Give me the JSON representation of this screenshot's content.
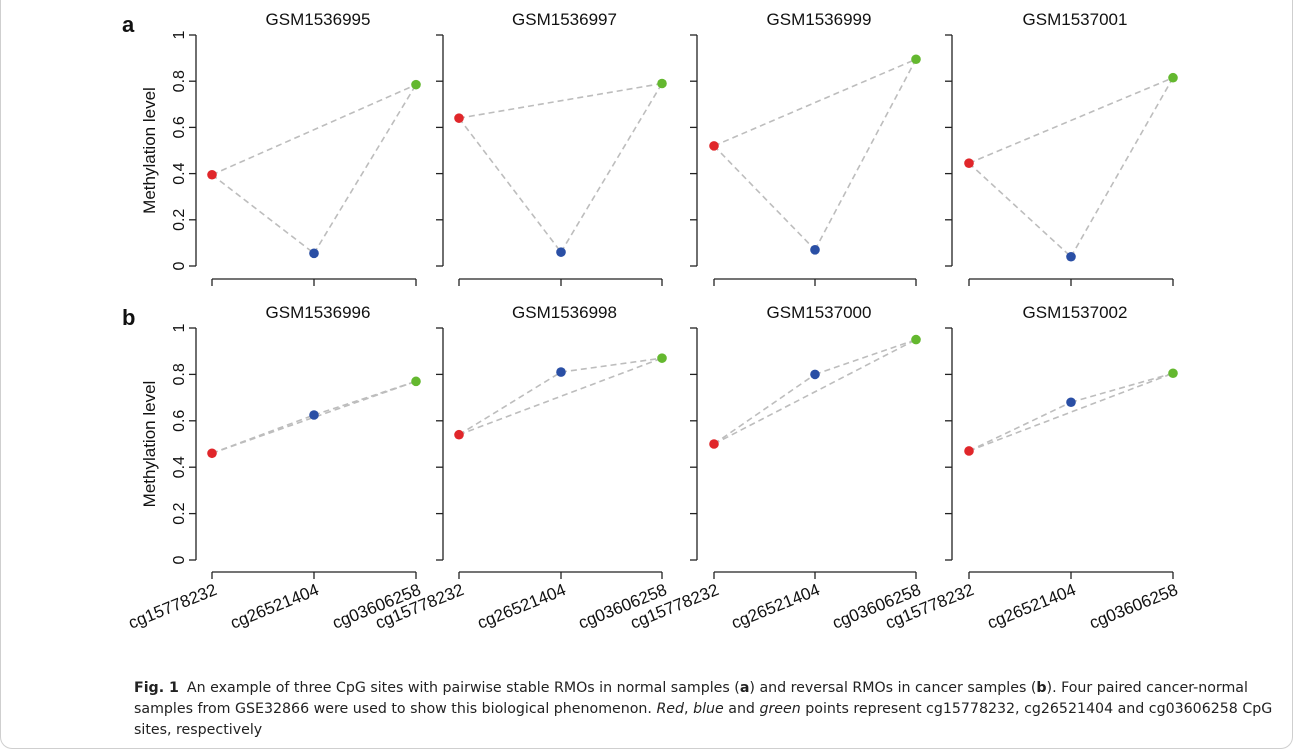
{
  "panels_rows": [
    {
      "label": "a",
      "panels": [
        "GSM1536995",
        "GSM1536997",
        "GSM1536999",
        "GSM1537001"
      ]
    },
    {
      "label": "b",
      "panels": [
        "GSM1536996",
        "GSM1536998",
        "GSM1537000",
        "GSM1537002"
      ]
    }
  ],
  "ylabel": "Methylation level",
  "categories": [
    "cg15778232",
    "cg26521404",
    "cg03606258"
  ],
  "colors": [
    "#e0262a",
    "#2a4fa5",
    "#64b82f"
  ],
  "y_ticks": [
    "0",
    "0.2",
    "0.4",
    "0.6",
    "0.8",
    "1"
  ],
  "chart_data": [
    {
      "type": "scatter",
      "title": "GSM1536995",
      "panel": "a",
      "ylabel": "Methylation level",
      "ylim": [
        0,
        1
      ],
      "categories": [
        "cg15778232",
        "cg26521404",
        "cg03606258"
      ],
      "values": [
        0.395,
        0.055,
        0.785
      ]
    },
    {
      "type": "scatter",
      "title": "GSM1536997",
      "panel": "a",
      "ylim": [
        0,
        1
      ],
      "categories": [
        "cg15778232",
        "cg26521404",
        "cg03606258"
      ],
      "values": [
        0.64,
        0.06,
        0.79
      ]
    },
    {
      "type": "scatter",
      "title": "GSM1536999",
      "panel": "a",
      "ylim": [
        0,
        1
      ],
      "categories": [
        "cg15778232",
        "cg26521404",
        "cg03606258"
      ],
      "values": [
        0.52,
        0.07,
        0.895
      ]
    },
    {
      "type": "scatter",
      "title": "GSM1537001",
      "panel": "a",
      "ylim": [
        0,
        1
      ],
      "categories": [
        "cg15778232",
        "cg26521404",
        "cg03606258"
      ],
      "values": [
        0.445,
        0.04,
        0.815
      ]
    },
    {
      "type": "scatter",
      "title": "GSM1536996",
      "panel": "b",
      "ylabel": "Methylation level",
      "ylim": [
        0,
        1
      ],
      "categories": [
        "cg15778232",
        "cg26521404",
        "cg03606258"
      ],
      "values": [
        0.46,
        0.625,
        0.77
      ]
    },
    {
      "type": "scatter",
      "title": "GSM1536998",
      "panel": "b",
      "ylim": [
        0,
        1
      ],
      "categories": [
        "cg15778232",
        "cg26521404",
        "cg03606258"
      ],
      "values": [
        0.54,
        0.81,
        0.87
      ]
    },
    {
      "type": "scatter",
      "title": "GSM1537000",
      "panel": "b",
      "ylim": [
        0,
        1
      ],
      "categories": [
        "cg15778232",
        "cg26521404",
        "cg03606258"
      ],
      "values": [
        0.5,
        0.8,
        0.95
      ]
    },
    {
      "type": "scatter",
      "title": "GSM1537002",
      "panel": "b",
      "ylim": [
        0,
        1
      ],
      "categories": [
        "cg15778232",
        "cg26521404",
        "cg03606258"
      ],
      "values": [
        0.47,
        0.68,
        0.805
      ]
    }
  ],
  "caption": {
    "label": "Fig. 1",
    "p1": "An example of three CpG sites with pairwise stable RMOs in normal samples (",
    "a": "a",
    "p2": ") and reversal RMOs in cancer samples (",
    "b": "b",
    "p3": "). Four paired cancer-normal samples from GSE32866 were used to show this biological phenomenon. ",
    "red": "Red",
    "c1": ", ",
    "blue": "blue",
    "c2": " and ",
    "green": "green",
    "p4": " points represent cg15778232, cg26521404 and cg03606258 CpG sites, respectively"
  }
}
